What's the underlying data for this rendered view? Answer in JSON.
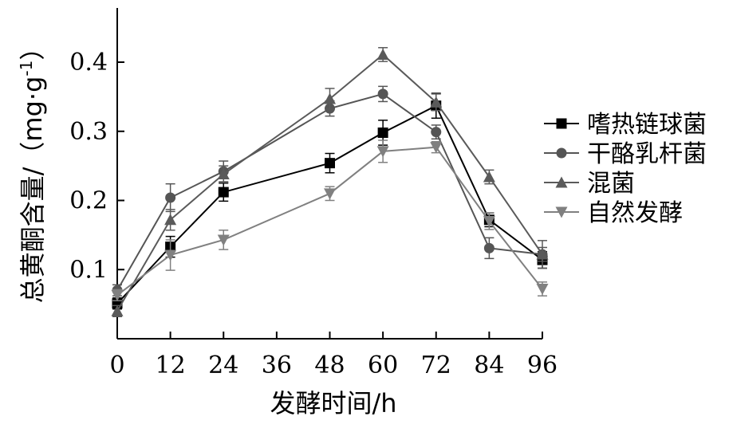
{
  "chart_data": {
    "type": "line",
    "xlabel": "发酵时间/h",
    "ylabel": "总黄酮含量/（mg·g",
    "ylabel_sup": "-1",
    "ylabel_tail": "）",
    "x": [
      0,
      12,
      24,
      48,
      60,
      72,
      84,
      96
    ],
    "xticks": [
      "0",
      "12",
      "24",
      "36",
      "48",
      "60",
      "72",
      "84",
      "96"
    ],
    "xlim": [
      0,
      96
    ],
    "yticks": [
      "0.1",
      "0.2",
      "0.3",
      "0.4"
    ],
    "ylim": [
      0,
      0.5
    ],
    "grid": false,
    "legend_position": "right",
    "series": [
      {
        "name": "嗜热链球菌",
        "marker": "square",
        "color": "#000000",
        "values": [
          0.051,
          0.133,
          0.212,
          0.254,
          0.298,
          0.337,
          0.172,
          0.114
        ],
        "errors": [
          0.008,
          0.015,
          0.013,
          0.014,
          0.018,
          0.018,
          0.01,
          0.012
        ]
      },
      {
        "name": "干酪乳杆菌",
        "marker": "circle",
        "color": "#555555",
        "values": [
          0.07,
          0.204,
          0.242,
          0.333,
          0.354,
          0.299,
          0.131,
          0.122
        ],
        "errors": [
          0.008,
          0.02,
          0.015,
          0.011,
          0.011,
          0.01,
          0.015,
          0.01
        ]
      },
      {
        "name": "混菌",
        "marker": "triangle-up",
        "color": "#5a5a5a",
        "values": [
          0.04,
          0.172,
          0.238,
          0.347,
          0.411,
          0.342,
          0.234,
          0.122
        ],
        "errors": [
          0.008,
          0.015,
          0.012,
          0.015,
          0.01,
          0.012,
          0.01,
          0.02
        ]
      },
      {
        "name": "自然发酵",
        "marker": "triangle-down",
        "color": "#808080",
        "values": [
          0.063,
          0.121,
          0.143,
          0.21,
          0.271,
          0.277,
          0.17,
          0.072
        ],
        "errors": [
          0.008,
          0.022,
          0.014,
          0.01,
          0.016,
          0.008,
          0.012,
          0.01
        ]
      }
    ]
  }
}
